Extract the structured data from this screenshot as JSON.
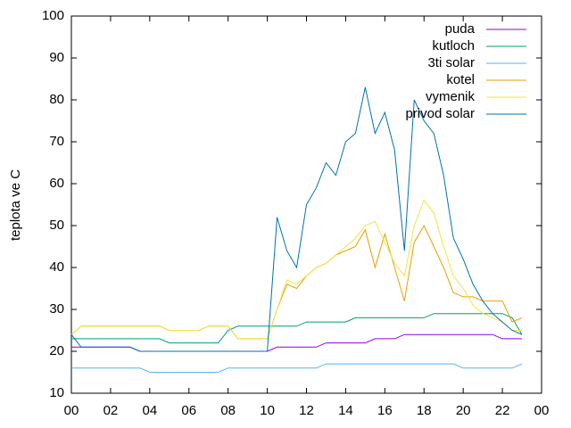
{
  "chart_data": {
    "type": "line",
    "ylabel": "teplota ve C",
    "x": [
      0,
      0.5,
      1,
      1.5,
      2,
      2.5,
      3,
      3.5,
      4,
      4.5,
      5,
      5.5,
      6,
      6.5,
      7,
      7.5,
      8,
      8.5,
      9,
      9.5,
      10,
      10.5,
      11,
      11.5,
      12,
      12.5,
      13,
      13.5,
      14,
      14.5,
      15,
      15.5,
      16,
      16.5,
      17,
      17.5,
      18,
      18.5,
      19,
      19.5,
      20,
      20.5,
      21,
      21.5,
      22,
      22.5,
      23
    ],
    "series": [
      {
        "name": "puda",
        "color": "#9400d3",
        "values": [
          21,
          21,
          21,
          21,
          21,
          21,
          21,
          20,
          20,
          20,
          20,
          20,
          20,
          20,
          20,
          20,
          20,
          20,
          20,
          20,
          20,
          21,
          21,
          21,
          21,
          21,
          22,
          22,
          22,
          22,
          22,
          23,
          23,
          23,
          24,
          24,
          24,
          24,
          24,
          24,
          24,
          24,
          24,
          24,
          23,
          23,
          23
        ]
      },
      {
        "name": "kutloch",
        "color": "#009e73",
        "values": [
          23,
          23,
          23,
          23,
          23,
          23,
          23,
          23,
          23,
          23,
          22,
          22,
          22,
          22,
          22,
          22,
          25,
          26,
          26,
          26,
          26,
          26,
          26,
          26,
          27,
          27,
          27,
          27,
          27,
          28,
          28,
          28,
          28,
          28,
          28,
          28,
          28,
          29,
          29,
          29,
          29,
          29,
          29,
          29,
          29,
          28,
          24
        ]
      },
      {
        "name": "3ti solar",
        "color": "#56b4e9",
        "values": [
          16,
          16,
          16,
          16,
          16,
          16,
          16,
          16,
          15,
          15,
          15,
          15,
          15,
          15,
          15,
          15,
          16,
          16,
          16,
          16,
          16,
          16,
          16,
          16,
          16,
          16,
          17,
          17,
          17,
          17,
          17,
          17,
          17,
          17,
          17,
          17,
          17,
          17,
          17,
          17,
          16,
          16,
          16,
          16,
          16,
          16,
          17
        ]
      },
      {
        "name": "kotel",
        "color": "#e69f00",
        "values": [
          24,
          26,
          26,
          26,
          26,
          26,
          26,
          26,
          26,
          26,
          25,
          25,
          25,
          25,
          26,
          26,
          26,
          23,
          23,
          23,
          23,
          30,
          36,
          35,
          38,
          40,
          41,
          43,
          44,
          45,
          49,
          40,
          48,
          40,
          32,
          46,
          50,
          45,
          40,
          34,
          33,
          33,
          32,
          32,
          32,
          27,
          28
        ]
      },
      {
        "name": "vymenik",
        "color": "#f0e442",
        "values": [
          24,
          26,
          26,
          26,
          26,
          26,
          26,
          26,
          26,
          26,
          25,
          25,
          25,
          25,
          26,
          26,
          26,
          23,
          23,
          23,
          23,
          30,
          37,
          36,
          38,
          40,
          41,
          43,
          45,
          47,
          50,
          51,
          46,
          41,
          38,
          50,
          56,
          53,
          45,
          38,
          35,
          31,
          29,
          28,
          27,
          25,
          25
        ]
      },
      {
        "name": "privod solar",
        "color": "#0072b2",
        "values": [
          24,
          21,
          21,
          21,
          21,
          21,
          21,
          20,
          20,
          20,
          20,
          20,
          20,
          20,
          20,
          20,
          20,
          20,
          20,
          20,
          20,
          52,
          44,
          40,
          55,
          59,
          65,
          62,
          70,
          72,
          83,
          72,
          77,
          68,
          44,
          80,
          75,
          72,
          62,
          47,
          42,
          36,
          32,
          29,
          27,
          25,
          24
        ]
      }
    ],
    "xlim": [
      0,
      24
    ],
    "xticks": [
      {
        "value": 0,
        "label": "00"
      },
      {
        "value": 2,
        "label": "02"
      },
      {
        "value": 4,
        "label": "04"
      },
      {
        "value": 6,
        "label": "06"
      },
      {
        "value": 8,
        "label": "08"
      },
      10,
      12,
      14,
      16,
      18,
      20,
      22,
      {
        "value": 24,
        "label": "00"
      }
    ],
    "ylim": [
      10,
      100
    ],
    "yticks": [
      10,
      20,
      30,
      40,
      50,
      60,
      70,
      80,
      90,
      100
    ],
    "legend": "top-right"
  }
}
